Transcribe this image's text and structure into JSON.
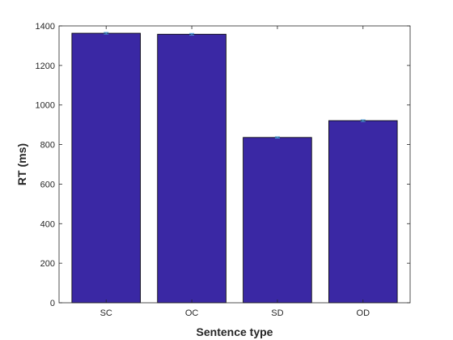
{
  "chart_data": {
    "type": "bar",
    "categories": [
      "SC",
      "OC",
      "SD",
      "OD"
    ],
    "values": [
      1363,
      1358,
      836,
      921
    ],
    "error": [
      4,
      4,
      3,
      4
    ],
    "title": "",
    "xlabel": "Sentence type",
    "ylabel": "RT (ms)",
    "ylim": [
      0,
      1400
    ],
    "yticks": [
      0,
      200,
      400,
      600,
      800,
      1000,
      1200,
      1400
    ],
    "bar_color": "#3a28a4",
    "error_color": "#4fa3e0",
    "grid": false,
    "legend": "none"
  }
}
